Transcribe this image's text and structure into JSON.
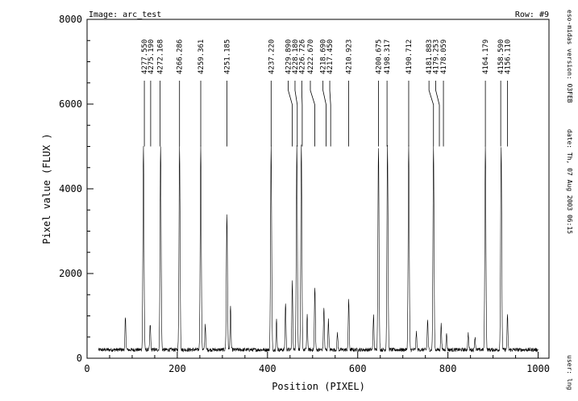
{
  "chart_data": {
    "type": "line",
    "header_left": "Image: arc_test",
    "header_right": "Row: #9",
    "xlabel": "Position (PIXEL)",
    "ylabel": "Pixel value (FLUX )",
    "xlim": [
      0,
      1024
    ],
    "ylim": [
      0,
      8000
    ],
    "x_ticks": [
      0,
      200,
      400,
      600,
      800,
      1000
    ],
    "y_ticks": [
      0,
      2000,
      4000,
      6000,
      8000
    ],
    "x_tick_labels": [
      "0",
      "200",
      "400",
      "600",
      "800",
      "1000"
    ],
    "y_tick_labels": [
      "0",
      "2000",
      "4000",
      "6000",
      "8000"
    ],
    "grid": false,
    "baseline": 200,
    "plot_range": [
      25,
      1000
    ],
    "peaks": [
      {
        "x": 85,
        "y": 950
      },
      {
        "x": 125,
        "y": 5000
      },
      {
        "x": 140,
        "y": 800
      },
      {
        "x": 163,
        "y": 5000
      },
      {
        "x": 205,
        "y": 5000
      },
      {
        "x": 252,
        "y": 5000
      },
      {
        "x": 262,
        "y": 800
      },
      {
        "x": 310,
        "y": 3400
      },
      {
        "x": 318,
        "y": 1200
      },
      {
        "x": 408,
        "y": 5000
      },
      {
        "x": 420,
        "y": 900
      },
      {
        "x": 440,
        "y": 1300
      },
      {
        "x": 455,
        "y": 1800
      },
      {
        "x": 465,
        "y": 5000
      },
      {
        "x": 475,
        "y": 5000
      },
      {
        "x": 488,
        "y": 1000
      },
      {
        "x": 505,
        "y": 1700
      },
      {
        "x": 525,
        "y": 1200
      },
      {
        "x": 535,
        "y": 900
      },
      {
        "x": 555,
        "y": 600
      },
      {
        "x": 580,
        "y": 1400
      },
      {
        "x": 635,
        "y": 1000
      },
      {
        "x": 646,
        "y": 5000
      },
      {
        "x": 666,
        "y": 5000
      },
      {
        "x": 713,
        "y": 5000
      },
      {
        "x": 730,
        "y": 600
      },
      {
        "x": 755,
        "y": 900
      },
      {
        "x": 768,
        "y": 5000
      },
      {
        "x": 785,
        "y": 800
      },
      {
        "x": 797,
        "y": 600
      },
      {
        "x": 845,
        "y": 600
      },
      {
        "x": 860,
        "y": 500
      },
      {
        "x": 883,
        "y": 5000
      },
      {
        "x": 918,
        "y": 5000
      },
      {
        "x": 932,
        "y": 1000
      }
    ],
    "line_ids": [
      {
        "label": "4277.550",
        "x": 127,
        "ticks_y": 5000,
        "label_x": 127
      },
      {
        "label": "4275.190",
        "x": 141,
        "ticks_y": 5000,
        "label_x": 141
      },
      {
        "label": "4272.168",
        "x": 162,
        "ticks_y": 5000,
        "label_x": 162
      },
      {
        "label": "4266.286",
        "x": 205,
        "ticks_y": 5000,
        "label_x": 205
      },
      {
        "label": "4259.361",
        "x": 252,
        "ticks_y": 5000,
        "label_x": 252
      },
      {
        "label": "4251.185",
        "x": 310,
        "ticks_y": 5000,
        "label_x": 310
      },
      {
        "label": "4237.220",
        "x": 408,
        "ticks_y": 5000,
        "label_x": 408
      },
      {
        "label": "4229.890",
        "x": 455,
        "ticks_y": 5000,
        "label_x": 446
      },
      {
        "label": "4228.180",
        "x": 466,
        "ticks_y": 5000,
        "label_x": 461
      },
      {
        "label": "4226.726",
        "x": 477,
        "ticks_y": 5000,
        "label_x": 476
      },
      {
        "label": "4222.670",
        "x": 505,
        "ticks_y": 5000,
        "label_x": 495
      },
      {
        "label": "4218.690",
        "x": 530,
        "ticks_y": 5000,
        "label_x": 523
      },
      {
        "label": "4217.450",
        "x": 540,
        "ticks_y": 5000,
        "label_x": 538
      },
      {
        "label": "4210.923",
        "x": 580,
        "ticks_y": 5000,
        "label_x": 580
      },
      {
        "label": "4200.675",
        "x": 646,
        "ticks_y": 5000,
        "label_x": 646
      },
      {
        "label": "4198.317",
        "x": 665,
        "ticks_y": 5000,
        "label_x": 665
      },
      {
        "label": "4190.712",
        "x": 713,
        "ticks_y": 5000,
        "label_x": 713
      },
      {
        "label": "4181.883",
        "x": 768,
        "ticks_y": 5000,
        "label_x": 758
      },
      {
        "label": "4179.253",
        "x": 781,
        "ticks_y": 5000,
        "label_x": 773
      },
      {
        "label": "4178.059",
        "x": 790,
        "ticks_y": 5000,
        "label_x": 790
      },
      {
        "label": "4164.179",
        "x": 883,
        "ticks_y": 5000,
        "label_x": 883
      },
      {
        "label": "4158.590",
        "x": 917,
        "ticks_y": 5000,
        "label_x": 917
      },
      {
        "label": "4156.110",
        "x": 932,
        "ticks_y": 5000,
        "label_x": 932
      }
    ],
    "side_text": [
      "eso-midas version: 03FEB",
      "date: Th, 07 Aug 2003 06:15",
      "user: lng"
    ]
  }
}
